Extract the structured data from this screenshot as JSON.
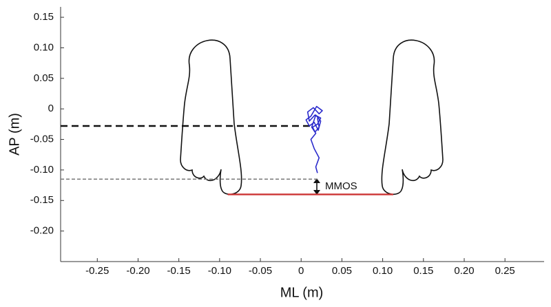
{
  "chart_data": {
    "type": "line",
    "x_label": "ML (m)",
    "y_label": "AP (m)",
    "annotation": "MMOS",
    "xlim": [
      -0.295,
      0.298
    ],
    "ylim": [
      -0.25,
      0.167
    ],
    "xticks": [
      -0.25,
      {
        "value": -0.2,
        "label": "-0.20"
      },
      -0.15,
      {
        "value": -0.1,
        "label": "-0.10"
      },
      -0.05,
      0,
      0.05,
      {
        "value": 0.1,
        "label": "0.10"
      },
      0.15,
      {
        "value": 0.2,
        "label": "0.20"
      },
      0.25
    ],
    "yticks": [
      0.15,
      {
        "value": 0.1,
        "label": "0.10"
      },
      0.05,
      0,
      -0.05,
      {
        "value": -0.1,
        "label": "-0.10"
      },
      -0.15,
      {
        "value": -0.2,
        "label": "-0.20"
      }
    ],
    "grid": false,
    "series": [
      {
        "color": "#111111",
        "style": "dashed-bold",
        "x": [
          -0.295,
          0.015
        ],
        "values": [
          -0.028,
          -0.028
        ]
      },
      {
        "color": "#777777",
        "style": "dashed",
        "x": [
          -0.295,
          0.02
        ],
        "values": [
          -0.115,
          -0.115
        ]
      },
      {
        "color": "#cc3333",
        "style": "solid",
        "x": [
          -0.09,
          0.113
        ],
        "values": [
          -0.14,
          -0.14
        ]
      },
      {
        "color": "#2a2acc",
        "style": "solid",
        "x": [
          0.02,
          0.018,
          0.022,
          0.016,
          0.012,
          0.018,
          0.014,
          0.02,
          0.024,
          0.017,
          0.01,
          0.008,
          0.015,
          0.022,
          0.026,
          0.019,
          0.012,
          0.006,
          0.01,
          0.016,
          0.021,
          0.024,
          0.018,
          0.013,
          0.017,
          0.022,
          0.02
        ],
        "values": [
          -0.105,
          -0.095,
          -0.08,
          -0.065,
          -0.05,
          -0.04,
          -0.03,
          -0.025,
          -0.015,
          -0.01,
          -0.02,
          -0.005,
          0.002,
          -0.008,
          -0.003,
          0.004,
          -0.012,
          -0.018,
          -0.028,
          -0.022,
          -0.035,
          -0.02,
          -0.01,
          -0.03,
          -0.038,
          -0.03,
          -0.015
        ]
      }
    ]
  }
}
